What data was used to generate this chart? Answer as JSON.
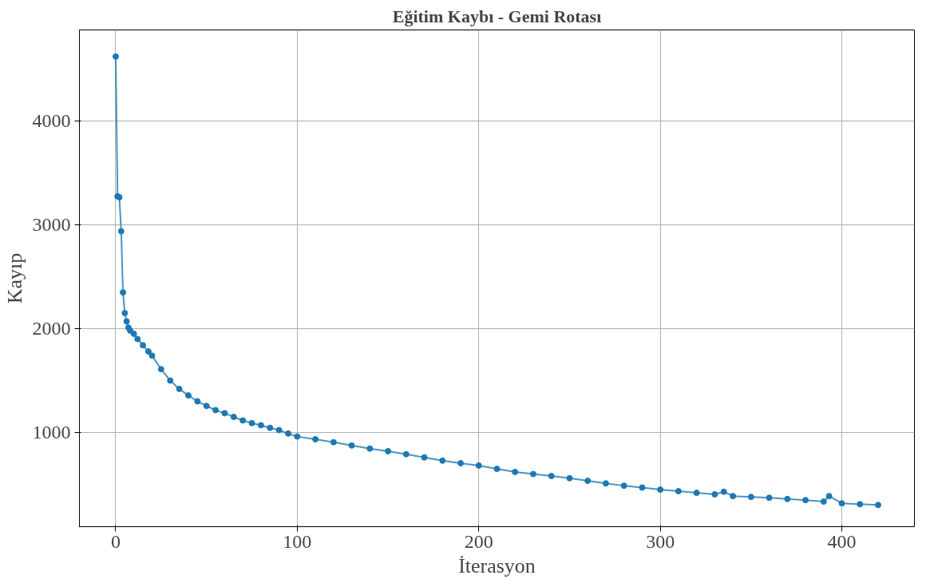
{
  "chart_data": {
    "type": "line",
    "title": "Eğitim Kaybı - Gemi Rotası",
    "xlabel": "İterasyon",
    "ylabel": "Kayıp",
    "x": [
      0,
      1,
      2,
      3,
      4,
      5,
      6,
      7,
      8,
      10,
      12,
      15,
      18,
      20,
      25,
      30,
      35,
      40,
      45,
      50,
      55,
      60,
      65,
      70,
      75,
      80,
      85,
      90,
      95,
      100,
      110,
      120,
      130,
      140,
      150,
      160,
      170,
      180,
      190,
      200,
      210,
      220,
      230,
      240,
      250,
      260,
      270,
      280,
      290,
      300,
      310,
      320,
      330,
      335,
      340,
      350,
      360,
      370,
      380,
      390,
      393,
      400,
      410,
      420
    ],
    "series": [
      {
        "color": "#1f77b4",
        "values": [
          4620,
          3274,
          3265,
          2938,
          2349,
          2150,
          2070,
          2010,
          1980,
          1950,
          1900,
          1840,
          1780,
          1740,
          1610,
          1500,
          1420,
          1357,
          1300,
          1256,
          1215,
          1186,
          1150,
          1116,
          1090,
          1070,
          1045,
          1023,
          990,
          961,
          935,
          907,
          875,
          845,
          820,
          791,
          760,
          729,
          705,
          682,
          650,
          620,
          600,
          581,
          560,
          535,
          510,
          488,
          470,
          450,
          435,
          419,
          405,
          430,
          388,
          380,
          372,
          360,
          349,
          335,
          388,
          318,
          310,
          302
        ]
      }
    ],
    "xlim": [
      -20,
      440
    ],
    "ylim": [
      93,
      4876
    ],
    "xticks": [
      0,
      100,
      200,
      300,
      400
    ],
    "yticks": [
      1000,
      2000,
      3000,
      4000
    ],
    "grid": true,
    "marker": "circle",
    "line_style": "solid"
  }
}
